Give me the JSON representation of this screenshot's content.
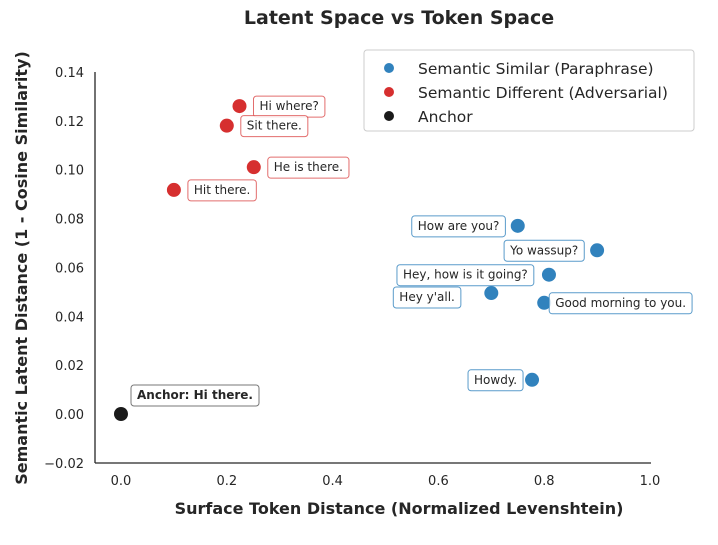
{
  "chart_data": {
    "type": "scatter",
    "title": "Latent Space vs Token Space",
    "xlabel": "Surface Token Distance (Normalized Levenshtein)",
    "ylabel": "Semantic Latent Distance (1 - Cosine Similarity)",
    "xlim": [
      -0.05,
      1.0
    ],
    "ylim": [
      -0.02,
      0.14
    ],
    "xticks": [
      "0.0",
      "0.2",
      "0.4",
      "0.6",
      "0.8",
      "1.0"
    ],
    "yticks": [
      "−0.02",
      "0.00",
      "0.02",
      "0.04",
      "0.06",
      "0.08",
      "0.10",
      "0.12",
      "0.14"
    ],
    "grid": false,
    "legend_position": "top-right",
    "series": [
      {
        "name": "Semantic Similar (Paraphrase)",
        "color": "#3182bd",
        "points": [
          {
            "x": 0.75,
            "y": 0.077,
            "label": "How are you?"
          },
          {
            "x": 0.9,
            "y": 0.067,
            "label": "Yo wassup?"
          },
          {
            "x": 0.809,
            "y": 0.057,
            "label": "Hey, how is it going?"
          },
          {
            "x": 0.7,
            "y": 0.0495,
            "label": "Hey y'all."
          },
          {
            "x": 0.8,
            "y": 0.0455,
            "label": "Good morning to you."
          },
          {
            "x": 0.777,
            "y": 0.014,
            "label": "Howdy."
          }
        ]
      },
      {
        "name": "Semantic Different (Adversarial)",
        "color": "#d62f2f",
        "points": [
          {
            "x": 0.224,
            "y": 0.126,
            "label": "Hi where?"
          },
          {
            "x": 0.2,
            "y": 0.118,
            "label": "Sit there."
          },
          {
            "x": 0.251,
            "y": 0.101,
            "label": "He is there."
          },
          {
            "x": 0.1,
            "y": 0.0917,
            "label": "Hit there."
          }
        ]
      },
      {
        "name": "Anchor",
        "color": "#1a1a1a",
        "points": [
          {
            "x": 0.0,
            "y": 0.0,
            "label": "Anchor: Hi there."
          }
        ]
      }
    ]
  }
}
